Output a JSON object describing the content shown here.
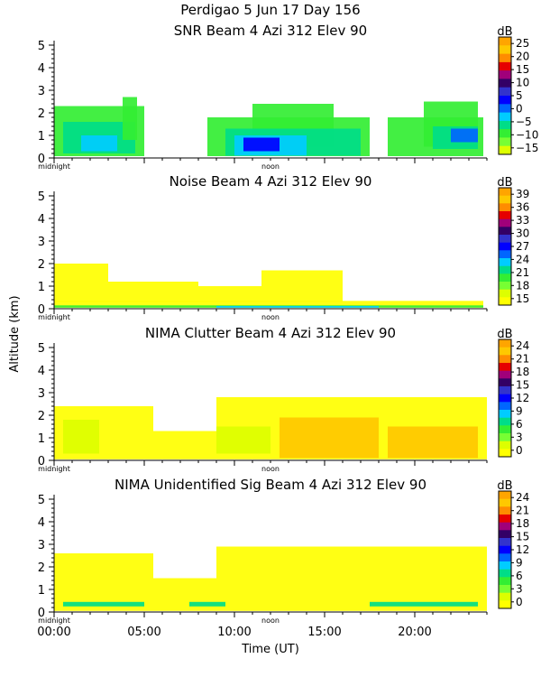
{
  "figure": {
    "title": "Perdigao    5 Jun 17 Day 156",
    "ylabel": "Altitude (km)",
    "xlabel": "Time (UT)",
    "x_ticks": [
      "00:00",
      "05:00",
      "10:00",
      "15:00",
      "20:00"
    ],
    "x_tick_hours": [
      0,
      5,
      10,
      15,
      20
    ],
    "midnight_label": "midnight",
    "noon_label": "noon",
    "cb_unit": "dB"
  },
  "chart_data": [
    {
      "type": "heatmap",
      "title": "SNR Beam 4 Azi 312 Elev 90",
      "xlabel": "Time (UT)",
      "ylabel": "Altitude (km)",
      "xlim": [
        0,
        24
      ],
      "ylim": [
        0,
        5.2
      ],
      "y_ticks": [
        0,
        1,
        2,
        3,
        4,
        5
      ],
      "colorbar": {
        "unit": "dB",
        "labels": [
          "25",
          "20",
          "15",
          "10",
          "5",
          "0",
          "−5",
          "−10",
          "−15"
        ],
        "colors": [
          "#ffa500",
          "#ffc800",
          "#ff8c00",
          "#e60000",
          "#a0007a",
          "#330066",
          "#3333cc",
          "#0000ff",
          "#0066ff",
          "#00ccff",
          "#00dd88",
          "#33ee33",
          "#77ff33",
          "#ddff00"
        ]
      },
      "regions": [
        {
          "t0": 0.0,
          "t1": 5.0,
          "h0": 0.08,
          "h1": 2.3,
          "level": 11
        },
        {
          "t0": 0.5,
          "t1": 4.5,
          "h0": 0.2,
          "h1": 1.6,
          "level": 10
        },
        {
          "t0": 1.5,
          "t1": 3.5,
          "h0": 0.3,
          "h1": 1.0,
          "level": 9
        },
        {
          "t0": 3.8,
          "t1": 4.6,
          "h0": 0.8,
          "h1": 2.7,
          "level": 11
        },
        {
          "t0": 8.5,
          "t1": 17.5,
          "h0": 0.08,
          "h1": 1.8,
          "level": 11
        },
        {
          "t0": 11.0,
          "t1": 15.5,
          "h0": 0.5,
          "h1": 2.4,
          "level": 11
        },
        {
          "t0": 9.5,
          "t1": 17.0,
          "h0": 0.1,
          "h1": 1.3,
          "level": 10
        },
        {
          "t0": 10.0,
          "t1": 14.0,
          "h0": 0.1,
          "h1": 1.0,
          "level": 9
        },
        {
          "t0": 10.5,
          "t1": 12.5,
          "h0": 0.3,
          "h1": 0.9,
          "level": 7
        },
        {
          "t0": 18.5,
          "t1": 23.8,
          "h0": 0.08,
          "h1": 1.8,
          "level": 11
        },
        {
          "t0": 20.5,
          "t1": 23.5,
          "h0": 0.5,
          "h1": 2.5,
          "level": 11
        },
        {
          "t0": 21.0,
          "t1": 23.5,
          "h0": 0.4,
          "h1": 1.4,
          "level": 10
        },
        {
          "t0": 22.0,
          "t1": 23.5,
          "h0": 0.7,
          "h1": 1.3,
          "level": 8
        }
      ]
    },
    {
      "type": "heatmap",
      "title": "Noise Beam 4 Azi 312 Elev 90",
      "xlabel": "Time (UT)",
      "ylabel": "Altitude (km)",
      "xlim": [
        0,
        24
      ],
      "ylim": [
        0,
        5.2
      ],
      "y_ticks": [
        0,
        1,
        2,
        3,
        4,
        5
      ],
      "colorbar": {
        "unit": "dB",
        "labels": [
          "39",
          "36",
          "33",
          "30",
          "27",
          "24",
          "21",
          "18",
          "15"
        ],
        "colors": [
          "#ffa500",
          "#ffc800",
          "#ff8c00",
          "#e60000",
          "#a0007a",
          "#330066",
          "#3333cc",
          "#0000ff",
          "#0066ff",
          "#00ccff",
          "#00dd88",
          "#33ee33",
          "#77ff33",
          "#ddff00",
          "#ffff00"
        ]
      },
      "regions": [
        {
          "t0": 0.0,
          "t1": 3.0,
          "h0": 0.3,
          "h1": 2.0,
          "level": 14
        },
        {
          "t0": 3.0,
          "t1": 8.0,
          "h0": 0.3,
          "h1": 1.2,
          "level": 14
        },
        {
          "t0": 11.5,
          "t1": 16.0,
          "h0": 0.3,
          "h1": 1.7,
          "level": 14
        },
        {
          "t0": 8.0,
          "t1": 11.5,
          "h0": 0.3,
          "h1": 1.0,
          "level": 14
        },
        {
          "t0": 0.0,
          "t1": 23.8,
          "h0": 0.05,
          "h1": 0.35,
          "level": 14
        },
        {
          "t0": 0.0,
          "t1": 23.8,
          "h0": 0.05,
          "h1": 0.15,
          "level": 11
        },
        {
          "t0": 9.0,
          "t1": 18.0,
          "h0": 0.05,
          "h1": 0.12,
          "level": 9
        }
      ]
    },
    {
      "type": "heatmap",
      "title": "NIMA Clutter Beam 4 Azi 312 Elev 90",
      "xlabel": "Time (UT)",
      "ylabel": "Altitude (km)",
      "xlim": [
        0,
        24
      ],
      "ylim": [
        0,
        5.2
      ],
      "y_ticks": [
        0,
        1,
        2,
        3,
        4,
        5
      ],
      "colorbar": {
        "unit": "dB",
        "labels": [
          "24",
          "21",
          "18",
          "15",
          "12",
          "9",
          "6",
          "3",
          "0"
        ],
        "colors": [
          "#ffa500",
          "#ffc800",
          "#ff8c00",
          "#e60000",
          "#a0007a",
          "#330066",
          "#3333cc",
          "#0000ff",
          "#0066ff",
          "#00ccff",
          "#00dd88",
          "#33ee33",
          "#77ff33",
          "#ddff00",
          "#ffff00"
        ]
      },
      "regions": [
        {
          "t0": 0.0,
          "t1": 5.5,
          "h0": 0.05,
          "h1": 2.4,
          "level": 14
        },
        {
          "t0": 5.5,
          "t1": 9.0,
          "h0": 0.05,
          "h1": 1.3,
          "level": 14
        },
        {
          "t0": 9.0,
          "t1": 24.0,
          "h0": 0.05,
          "h1": 2.8,
          "level": 14
        },
        {
          "t0": 12.5,
          "t1": 18.0,
          "h0": 0.1,
          "h1": 1.9,
          "level": 1
        },
        {
          "t0": 18.5,
          "t1": 23.5,
          "h0": 0.1,
          "h1": 1.5,
          "level": 1
        },
        {
          "t0": 0.5,
          "t1": 2.5,
          "h0": 0.3,
          "h1": 1.8,
          "level": 13
        },
        {
          "t0": 9.0,
          "t1": 12.0,
          "h0": 0.3,
          "h1": 1.5,
          "level": 13
        }
      ]
    },
    {
      "type": "heatmap",
      "title": "NIMA Unidentified Sig Beam 4 Azi 312 Elev 90",
      "xlabel": "Time (UT)",
      "ylabel": "Altitude (km)",
      "xlim": [
        0,
        24
      ],
      "ylim": [
        0,
        5.2
      ],
      "y_ticks": [
        0,
        1,
        2,
        3,
        4,
        5
      ],
      "colorbar": {
        "unit": "dB",
        "labels": [
          "24",
          "21",
          "18",
          "15",
          "12",
          "9",
          "6",
          "3",
          "0"
        ],
        "colors": [
          "#ffa500",
          "#ffc800",
          "#ff8c00",
          "#e60000",
          "#a0007a",
          "#330066",
          "#3333cc",
          "#0000ff",
          "#0066ff",
          "#00ccff",
          "#00dd88",
          "#33ee33",
          "#77ff33",
          "#ddff00",
          "#ffff00"
        ]
      },
      "regions": [
        {
          "t0": 0.0,
          "t1": 5.5,
          "h0": 0.05,
          "h1": 2.6,
          "level": 14
        },
        {
          "t0": 5.5,
          "t1": 9.0,
          "h0": 0.05,
          "h1": 1.5,
          "level": 14
        },
        {
          "t0": 9.0,
          "t1": 24.0,
          "h0": 0.05,
          "h1": 2.9,
          "level": 14
        },
        {
          "t0": 0.5,
          "t1": 5.0,
          "h0": 0.25,
          "h1": 0.45,
          "level": 10
        },
        {
          "t0": 7.5,
          "t1": 9.5,
          "h0": 0.25,
          "h1": 0.45,
          "level": 10
        },
        {
          "t0": 17.5,
          "t1": 23.5,
          "h0": 0.25,
          "h1": 0.45,
          "level": 10
        }
      ]
    }
  ]
}
